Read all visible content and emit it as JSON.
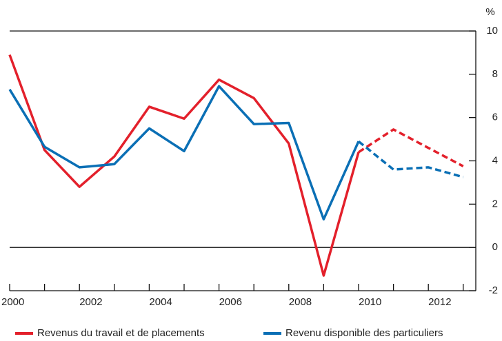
{
  "chart_data": {
    "type": "line",
    "y_unit": "%",
    "x": [
      2000,
      2001,
      2002,
      2003,
      2004,
      2005,
      2006,
      2007,
      2008,
      2009,
      2010,
      2011,
      2012,
      2013
    ],
    "xlim": [
      2000,
      2013.36
    ],
    "xticks": [
      2000,
      2002,
      2004,
      2006,
      2008,
      2010,
      2012
    ],
    "x_minor_ticks": [
      2001,
      2003,
      2005,
      2007,
      2009,
      2011,
      2013
    ],
    "ylim": [
      -2,
      10
    ],
    "yticks": [
      -2,
      0,
      2,
      4,
      6,
      8,
      10
    ],
    "dashed_from": 2010,
    "zero_line": true,
    "series": [
      {
        "name": "Revenus du travail et de placements",
        "color": "#e3202b",
        "values": [
          8.9,
          4.5,
          2.8,
          4.2,
          6.5,
          5.95,
          7.75,
          6.9,
          4.8,
          -1.3,
          4.4,
          5.45,
          4.6,
          3.75
        ]
      },
      {
        "name": "Revenu disponible des particuliers",
        "color": "#0a6fb5",
        "values": [
          7.3,
          4.65,
          3.7,
          3.85,
          5.5,
          4.45,
          7.45,
          5.7,
          5.75,
          1.3,
          4.9,
          3.6,
          3.7,
          3.25
        ]
      }
    ]
  }
}
